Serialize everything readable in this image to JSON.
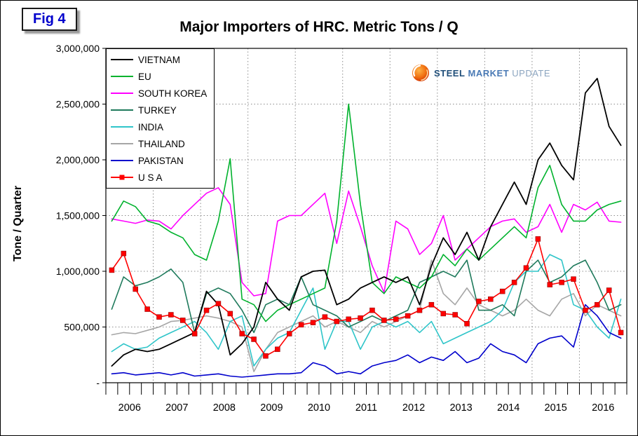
{
  "page": {
    "fig_label": "Fig 4",
    "title": "Major Importers of HRC. Metric Tons / Q",
    "y_axis_label": "Tone / Quarter"
  },
  "logo": {
    "part1": "STEEL",
    "part2": "MARKET",
    "part3": "UPDATE"
  },
  "chart_data": {
    "type": "line",
    "title": "Major Importers of HRC. Metric Tons / Q",
    "ylabel": "Tone / Quarter",
    "ylim": [
      0,
      3000000
    ],
    "y_tick_step": 500000,
    "y_tick_labels": [
      "-",
      "500,000",
      "1,000,000",
      "1,500,000",
      "2,000,000",
      "2,500,000",
      "3,000,000"
    ],
    "x_years": [
      "2006",
      "2007",
      "2008",
      "2009",
      "2010",
      "2011",
      "2012",
      "2013",
      "2014",
      "2015",
      "2016"
    ],
    "quarters_per_year": 4,
    "grid": "dashed",
    "legend_position": "top-left",
    "series": [
      {
        "name": "VIETNAM",
        "color": "#000000",
        "values": [
          150000,
          250000,
          300000,
          280000,
          300000,
          350000,
          400000,
          450000,
          820000,
          700000,
          250000,
          350000,
          500000,
          900000,
          750000,
          650000,
          950000,
          1000000,
          1010000,
          700000,
          750000,
          850000,
          900000,
          950000,
          900000,
          950000,
          700000,
          1050000,
          1300000,
          1150000,
          1350000,
          1100000,
          1400000,
          1600000,
          1800000,
          1600000,
          2000000,
          2150000,
          1950000,
          1820000,
          2600000,
          2730000,
          2300000,
          2130000
        ]
      },
      {
        "name": "EU",
        "color": "#00b22d",
        "values": [
          1450000,
          1630000,
          1580000,
          1450000,
          1420000,
          1350000,
          1300000,
          1150000,
          1100000,
          1450000,
          2010000,
          750000,
          700000,
          550000,
          650000,
          700000,
          750000,
          800000,
          850000,
          1450000,
          2500000,
          1600000,
          900000,
          800000,
          950000,
          900000,
          850000,
          950000,
          1150000,
          1050000,
          1200000,
          1100000,
          1200000,
          1300000,
          1400000,
          1300000,
          1750000,
          1950000,
          1600000,
          1450000,
          1450000,
          1550000,
          1600000,
          1630000
        ]
      },
      {
        "name": "SOUTH KOREA",
        "color": "#ff00ff",
        "values": [
          1470000,
          1450000,
          1430000,
          1460000,
          1450000,
          1380000,
          1500000,
          1600000,
          1700000,
          1750000,
          1600000,
          900000,
          780000,
          800000,
          1450000,
          1500000,
          1500000,
          1600000,
          1700000,
          1250000,
          1720000,
          1400000,
          1050000,
          810000,
          1450000,
          1380000,
          1150000,
          1250000,
          1500000,
          1100000,
          1200000,
          1300000,
          1400000,
          1450000,
          1470000,
          1350000,
          1400000,
          1600000,
          1350000,
          1600000,
          1550000,
          1620000,
          1450000,
          1440000
        ]
      },
      {
        "name": "TURKEY",
        "color": "#1f7a5c",
        "values": [
          660000,
          950000,
          870000,
          900000,
          950000,
          1020000,
          900000,
          450000,
          800000,
          850000,
          800000,
          650000,
          450000,
          700000,
          750000,
          700000,
          950000,
          700000,
          650000,
          600000,
          500000,
          550000,
          600000,
          550000,
          600000,
          650000,
          900000,
          950000,
          1000000,
          950000,
          1100000,
          650000,
          650000,
          700000,
          600000,
          1000000,
          1100000,
          900000,
          950000,
          1050000,
          1100000,
          900000,
          650000,
          700000
        ]
      },
      {
        "name": "INDIA",
        "color": "#2fc5c9",
        "values": [
          280000,
          350000,
          300000,
          320000,
          400000,
          450000,
          500000,
          550000,
          450000,
          300000,
          550000,
          600000,
          150000,
          300000,
          400000,
          450000,
          650000,
          850000,
          300000,
          550000,
          550000,
          300000,
          500000,
          550000,
          500000,
          550000,
          450000,
          550000,
          350000,
          400000,
          450000,
          500000,
          550000,
          650000,
          900000,
          1000000,
          1000000,
          1150000,
          1100000,
          700000,
          650000,
          500000,
          400000,
          750000
        ]
      },
      {
        "name": "THAILAND",
        "color": "#a6a6a6",
        "values": [
          430000,
          450000,
          440000,
          470000,
          500000,
          550000,
          560000,
          580000,
          600000,
          580000,
          550000,
          500000,
          100000,
          300000,
          450000,
          500000,
          550000,
          600000,
          500000,
          550000,
          500000,
          450000,
          550000,
          500000,
          550000,
          600000,
          650000,
          1100000,
          800000,
          700000,
          850000,
          700000,
          650000,
          600000,
          650000,
          750000,
          650000,
          600000,
          750000,
          800000,
          600000,
          700000,
          650000,
          600000
        ]
      },
      {
        "name": "PAKISTAN",
        "color": "#0000cc",
        "values": [
          80000,
          90000,
          70000,
          80000,
          90000,
          70000,
          90000,
          60000,
          70000,
          80000,
          60000,
          50000,
          60000,
          70000,
          80000,
          80000,
          90000,
          180000,
          150000,
          80000,
          100000,
          80000,
          150000,
          180000,
          200000,
          250000,
          180000,
          230000,
          200000,
          280000,
          180000,
          220000,
          350000,
          280000,
          250000,
          180000,
          350000,
          400000,
          420000,
          320000,
          700000,
          600000,
          450000,
          400000
        ]
      },
      {
        "name": "U S A",
        "color": "#ff0000",
        "marker": "square",
        "values": [
          1010000,
          1160000,
          840000,
          660000,
          590000,
          610000,
          560000,
          440000,
          650000,
          710000,
          620000,
          440000,
          390000,
          240000,
          300000,
          440000,
          520000,
          540000,
          590000,
          550000,
          570000,
          580000,
          650000,
          560000,
          570000,
          600000,
          650000,
          700000,
          620000,
          610000,
          530000,
          730000,
          750000,
          820000,
          900000,
          1030000,
          1290000,
          880000,
          900000,
          930000,
          650000,
          700000,
          830000,
          450000
        ]
      }
    ]
  }
}
